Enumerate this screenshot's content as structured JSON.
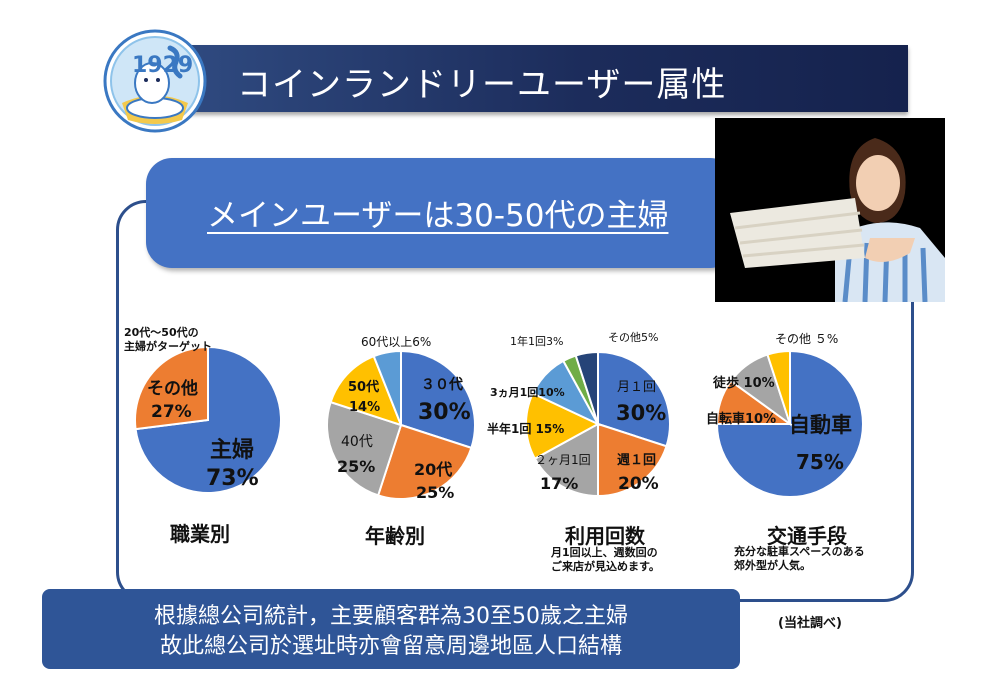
{
  "header": {
    "title": "コインランドリーユーザー属性",
    "logo_text": "1929"
  },
  "headline": "メインユーザーは30-50代の主婦",
  "charts": {
    "occupation": {
      "caption": "職業別",
      "note": [
        "20代～50代の",
        "主婦がターゲット"
      ],
      "slices": [
        {
          "name": "主婦",
          "value": 73,
          "pct": "73%",
          "color": "#4472c4"
        },
        {
          "name": "その他",
          "value": 27,
          "pct": "27%",
          "color": "#ed7d31"
        }
      ]
    },
    "age": {
      "caption": "年齢別",
      "slices": [
        {
          "name": "３０代",
          "value": 30,
          "pct": "30%",
          "color": "#4472c4"
        },
        {
          "name": "20代",
          "value": 25,
          "pct": "25%",
          "color": "#ed7d31"
        },
        {
          "name": "40代",
          "value": 25,
          "pct": "25%",
          "color": "#a5a5a5"
        },
        {
          "name": "50代",
          "value": 14,
          "pct": "14%",
          "color": "#ffc000"
        },
        {
          "name": "60代以上6%",
          "value": 6,
          "pct": "",
          "color": "#5b9bd5"
        }
      ]
    },
    "frequency": {
      "caption": "利用回数",
      "note": [
        "月1回以上、週数回の",
        "ご来店が見込めます。"
      ],
      "slices": [
        {
          "name": "月１回",
          "value": 30,
          "pct": "30%",
          "color": "#4472c4"
        },
        {
          "name": "週１回",
          "value": 20,
          "pct": "20%",
          "color": "#ed7d31"
        },
        {
          "name": "２ヶ月1回",
          "value": 17,
          "pct": "17%",
          "color": "#a5a5a5"
        },
        {
          "name": "半年1回 15%",
          "value": 15,
          "pct": "",
          "color": "#ffc000"
        },
        {
          "name": "3ヵ月1回10%",
          "value": 10,
          "pct": "",
          "color": "#5b9bd5"
        },
        {
          "name": "1年1回3%",
          "value": 3,
          "pct": "",
          "color": "#70ad47"
        },
        {
          "name": "その他5%",
          "value": 5,
          "pct": "",
          "color": "#264478"
        }
      ]
    },
    "transport": {
      "caption": "交通手段",
      "note": [
        "充分な駐車スペースのある",
        "郊外型が人気。"
      ],
      "slices": [
        {
          "name": "自動車",
          "value": 75,
          "pct": "75%",
          "color": "#4472c4"
        },
        {
          "name": "自転車10%",
          "value": 10,
          "pct": "",
          "color": "#ed7d31"
        },
        {
          "name": "徒歩 10%",
          "value": 10,
          "pct": "",
          "color": "#a5a5a5"
        },
        {
          "name": "その他 ５%",
          "value": 5,
          "pct": "",
          "color": "#ffc000"
        }
      ]
    }
  },
  "summary": {
    "line1": "根據總公司統計，主要顧客群為30至50歲之主婦",
    "line2": "故此總公司於選址時亦會留意周邊地區人口結構"
  },
  "source_note": "(当社調べ)"
}
